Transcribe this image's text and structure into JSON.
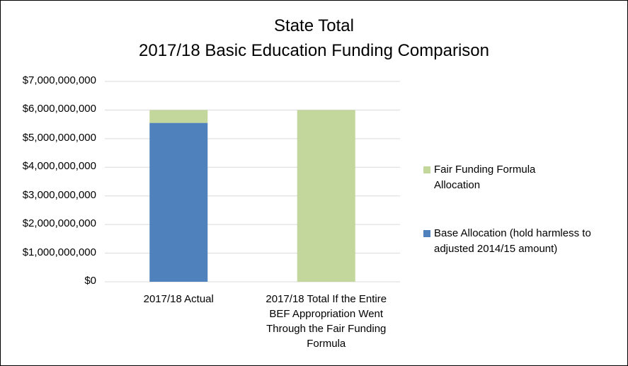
{
  "chart_data": {
    "type": "stacked_bar",
    "title": "State Total",
    "subtitle": "2017/18 Basic Education Funding Comparison",
    "categories": [
      "2017/18 Actual",
      "2017/18 Total If the Entire BEF Appropriation Went Through the Fair Funding Formula"
    ],
    "series": [
      {
        "name": "Base Allocation (hold harmless to adjusted 2014/15 amount)",
        "color": "#4f81bd",
        "values": [
          5550000000,
          0
        ]
      },
      {
        "name": "Fair Funding Formula Allocation",
        "color": "#c3d69b",
        "values": [
          450000000,
          6000000000
        ]
      }
    ],
    "ylim": [
      0,
      7000000000
    ],
    "yticks": [
      {
        "value": 0,
        "label": "$0"
      },
      {
        "value": 1000000000,
        "label": "$1,000,000,000"
      },
      {
        "value": 2000000000,
        "label": "$2,000,000,000"
      },
      {
        "value": 3000000000,
        "label": "$3,000,000,000"
      },
      {
        "value": 4000000000,
        "label": "$4,000,000,000"
      },
      {
        "value": 5000000000,
        "label": "$5,000,000,000"
      },
      {
        "value": 6000000000,
        "label": "$6,000,000,000"
      },
      {
        "value": 7000000000,
        "label": "$7,000,000,000"
      }
    ],
    "grid": true,
    "legend": "right"
  }
}
